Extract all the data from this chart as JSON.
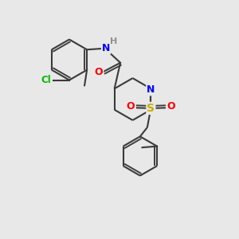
{
  "background_color": "#e8e8e8",
  "bond_color": "#3a3a3a",
  "bond_width": 1.5,
  "atom_colors": {
    "C": "#3a3a3a",
    "N": "#0000ff",
    "O": "#ff0000",
    "S": "#ccaa00",
    "Cl": "#00bb00",
    "H": "#909090"
  },
  "figsize": [
    3.0,
    3.0
  ],
  "dpi": 100,
  "xlim": [
    0,
    10
  ],
  "ylim": [
    0,
    10
  ]
}
